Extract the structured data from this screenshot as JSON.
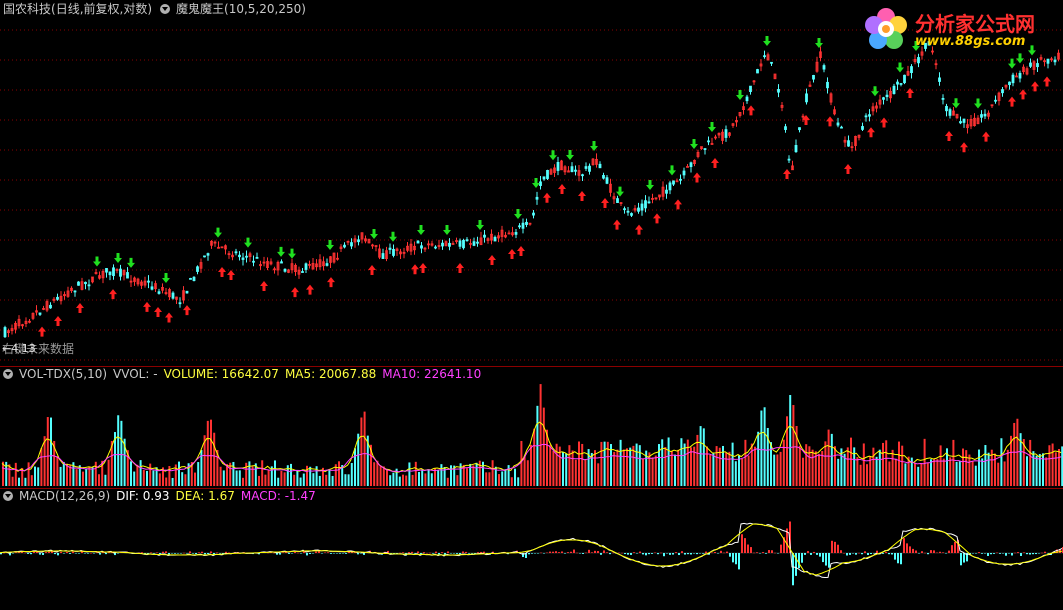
{
  "price_panel": {
    "stock_name": "国农科技",
    "period": "(日线,前复权,对数)",
    "indicator": "魔鬼魔王(10,5,20,250)",
    "future_note": "右键未来数据",
    "price_label": "4.13"
  },
  "vol_panel": {
    "name": "VOL-TDX(5,10)",
    "vvol": "VVOL: -",
    "volume": "VOLUME: 16642.07",
    "ma5": "MA5: 20067.88",
    "ma10": "MA10: 22641.10"
  },
  "macd_panel": {
    "name": "MACD(12,26,9)",
    "dif": "DIF: 0.93",
    "dea": "DEA: 1.67",
    "macd": "MACD: -1.47"
  },
  "watermark": {
    "title": "分析家公式网",
    "url": "www.88gs.com"
  },
  "colors": {
    "up": "#ff3232",
    "down": "#54ffff",
    "buy_arrow": "#ff2020",
    "sell_arrow": "#20e020",
    "grid": "#8b0000",
    "ma5": "#ffff00",
    "ma10": "#ff40ff",
    "dif": "#ffffff",
    "dea": "#ffff00"
  }
}
